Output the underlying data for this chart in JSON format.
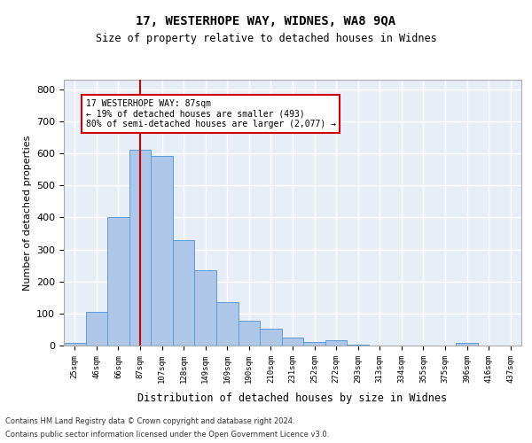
{
  "title1": "17, WESTERHOPE WAY, WIDNES, WA8 9QA",
  "title2": "Size of property relative to detached houses in Widnes",
  "xlabel": "Distribution of detached houses by size in Widnes",
  "ylabel": "Number of detached properties",
  "bar_labels": [
    "25sqm",
    "46sqm",
    "66sqm",
    "87sqm",
    "107sqm",
    "128sqm",
    "149sqm",
    "169sqm",
    "190sqm",
    "210sqm",
    "231sqm",
    "252sqm",
    "272sqm",
    "293sqm",
    "313sqm",
    "334sqm",
    "355sqm",
    "375sqm",
    "396sqm",
    "416sqm",
    "437sqm"
  ],
  "bar_values": [
    7,
    105,
    401,
    611,
    592,
    328,
    236,
    136,
    77,
    53,
    26,
    11,
    16,
    3,
    0,
    0,
    0,
    0,
    8,
    0,
    0
  ],
  "bar_color": "#aec6e8",
  "bar_edge_color": "#5b9bd5",
  "vline_x_index": 3,
  "vline_color": "#cc0000",
  "annotation_text": "17 WESTERHOPE WAY: 87sqm\n← 19% of detached houses are smaller (493)\n80% of semi-detached houses are larger (2,077) →",
  "annotation_box_color": "white",
  "annotation_box_edge_color": "#cc0000",
  "ylim": [
    0,
    830
  ],
  "yticks": [
    0,
    100,
    200,
    300,
    400,
    500,
    600,
    700,
    800
  ],
  "background_color": "#e8eef8",
  "grid_color": "white",
  "footer1": "Contains HM Land Registry data © Crown copyright and database right 2024.",
  "footer2": "Contains public sector information licensed under the Open Government Licence v3.0."
}
